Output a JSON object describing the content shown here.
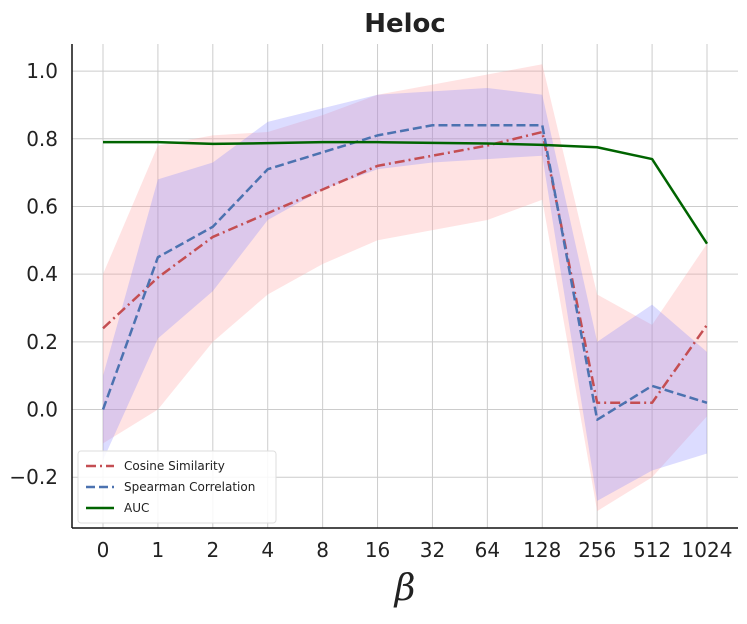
{
  "chart_data": {
    "type": "line",
    "title": "Heloc",
    "xlabel": "β",
    "ylabel": "",
    "categories": [
      "0",
      "1",
      "2",
      "4",
      "8",
      "16",
      "32",
      "64",
      "128",
      "256",
      "512",
      "1024"
    ],
    "ylim": [
      -0.35,
      1.08
    ],
    "yticks": [
      -0.2,
      0.0,
      0.2,
      0.4,
      0.6,
      0.8,
      1.0
    ],
    "ytick_labels": [
      "−0.2",
      "0.0",
      "0.2",
      "0.4",
      "0.6",
      "0.8",
      "1.0"
    ],
    "grid": true,
    "legend_position": "bottom-left",
    "series": [
      {
        "name": "Cosine Similarity",
        "color": "#c44e52",
        "style": "dashdot",
        "values": [
          0.24,
          0.39,
          0.51,
          0.58,
          0.65,
          0.72,
          0.75,
          0.78,
          0.82,
          0.02,
          0.02,
          0.25
        ],
        "band_low": [
          -0.1,
          0.0,
          0.2,
          0.34,
          0.43,
          0.5,
          0.53,
          0.56,
          0.62,
          -0.3,
          -0.2,
          -0.02
        ],
        "band_high": [
          0.4,
          0.78,
          0.81,
          0.82,
          0.87,
          0.93,
          0.96,
          0.99,
          1.02,
          0.34,
          0.25,
          0.49
        ],
        "band_color": "#ff9999"
      },
      {
        "name": "Spearman Correlation",
        "color": "#4c72b0",
        "style": "dashed",
        "values": [
          0.0,
          0.45,
          0.54,
          0.71,
          0.76,
          0.81,
          0.84,
          0.84,
          0.84,
          -0.03,
          0.07,
          0.02
        ],
        "band_low": [
          -0.15,
          0.21,
          0.35,
          0.56,
          0.65,
          0.71,
          0.73,
          0.74,
          0.75,
          -0.27,
          -0.18,
          -0.13
        ],
        "band_high": [
          0.1,
          0.68,
          0.73,
          0.85,
          0.89,
          0.93,
          0.94,
          0.95,
          0.93,
          0.2,
          0.31,
          0.17
        ],
        "band_color": "#8080ff"
      },
      {
        "name": "AUC",
        "color": "#006400",
        "style": "solid",
        "values": [
          0.79,
          0.79,
          0.785,
          0.787,
          0.79,
          0.79,
          0.788,
          0.786,
          0.782,
          0.775,
          0.74,
          0.49
        ]
      }
    ]
  }
}
